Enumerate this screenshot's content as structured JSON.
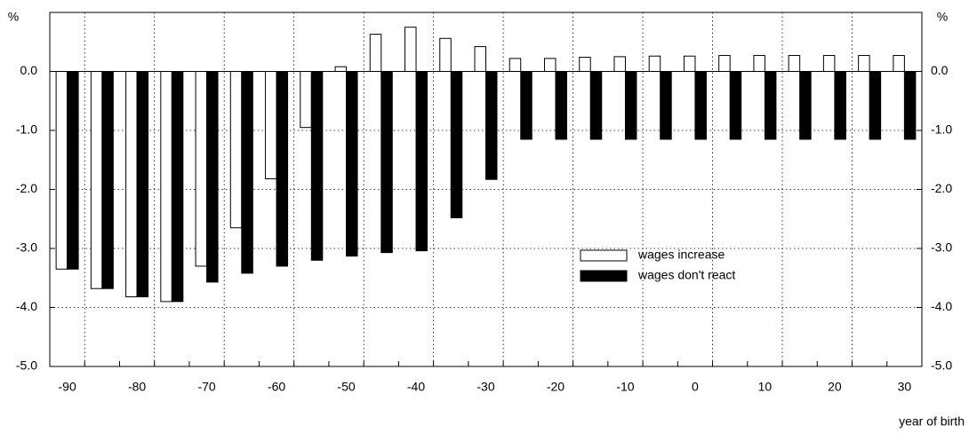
{
  "chart_data": {
    "type": "bar",
    "y_label": "%",
    "x_label": "year of birth",
    "categories": [
      "-90",
      null,
      "-80",
      null,
      "-70",
      null,
      "-60",
      null,
      "-50",
      null,
      "-40",
      null,
      "-30",
      null,
      "-20",
      null,
      "-10",
      null,
      "0",
      null,
      "10",
      null,
      "20",
      null,
      "30"
    ],
    "series": [
      {
        "name": "wages increase",
        "color": "#ffffff",
        "values": [
          -3.35,
          -3.68,
          -3.82,
          -3.9,
          -3.3,
          -2.65,
          -1.82,
          -0.95,
          0.08,
          0.63,
          0.75,
          0.56,
          0.42,
          0.22,
          0.22,
          0.24,
          0.25,
          0.26,
          0.26,
          0.27,
          0.27,
          0.27,
          0.27,
          0.27,
          0.27
        ]
      },
      {
        "name": "wages don't react",
        "color": "#000000",
        "values": [
          -3.35,
          -3.68,
          -3.82,
          -3.9,
          -3.57,
          -3.42,
          -3.3,
          -3.2,
          -3.13,
          -3.07,
          -3.04,
          -2.48,
          -1.83,
          -1.15,
          -1.15,
          -1.15,
          -1.15,
          -1.15,
          -1.15,
          -1.15,
          -1.15,
          -1.15,
          -1.15,
          -1.15,
          -1.15
        ]
      }
    ],
    "ylim": [
      -5,
      1
    ],
    "yticks": [
      {
        "value": -5,
        "label": "-5.0"
      },
      {
        "value": -4,
        "label": "-4.0"
      },
      {
        "value": -3,
        "label": "-3.0"
      },
      {
        "value": -2,
        "label": "-2.0"
      },
      {
        "value": -1,
        "label": "-1.0"
      },
      {
        "value": 0,
        "label": "0.0"
      }
    ],
    "grid": true,
    "legend": "center-right"
  }
}
